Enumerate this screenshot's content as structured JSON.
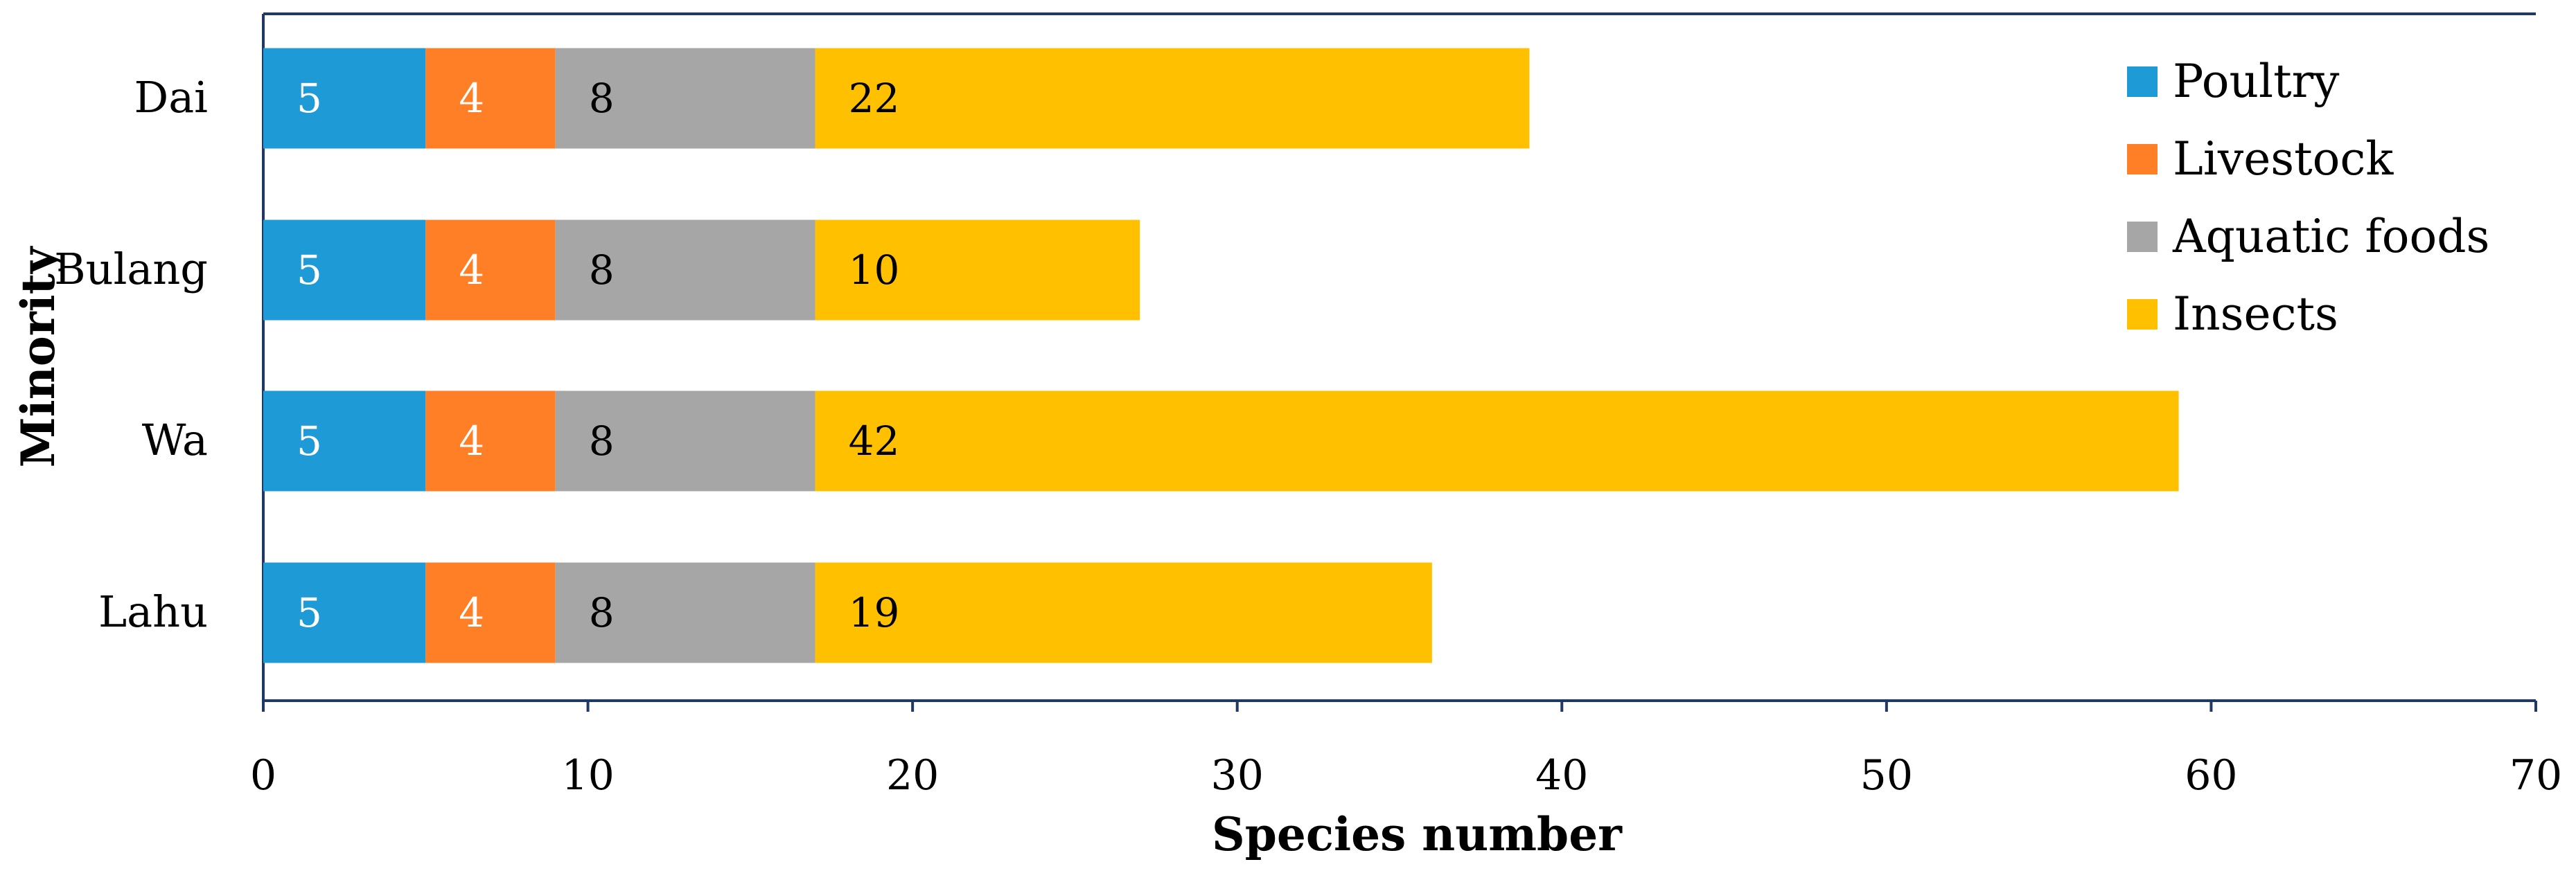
{
  "chart_data": {
    "type": "bar",
    "orientation": "horizontal",
    "stacked": true,
    "categories": [
      "Dai",
      "Bulang",
      "Wa",
      "Lahu"
    ],
    "series": [
      {
        "name": "Poultry",
        "values": [
          5,
          5,
          5,
          5
        ],
        "color": "#1E9AD6",
        "label_color": "#FFFFFF"
      },
      {
        "name": "Livestock",
        "values": [
          4,
          4,
          4,
          4
        ],
        "color": "#FF7F27",
        "label_color": "#FFFFFF"
      },
      {
        "name": "Aquatic foods",
        "values": [
          8,
          8,
          8,
          8
        ],
        "color": "#A6A6A6",
        "label_color": "#000000"
      },
      {
        "name": "Insects",
        "values": [
          22,
          10,
          42,
          19
        ],
        "color": "#FFC000",
        "label_color": "#000000"
      }
    ],
    "xlabel": "Species number",
    "ylabel": "Minority",
    "xlim": [
      0,
      70
    ],
    "xticks": [
      0,
      10,
      20,
      30,
      40,
      50,
      60,
      70
    ],
    "legend_position": "top-right",
    "grid": false
  }
}
